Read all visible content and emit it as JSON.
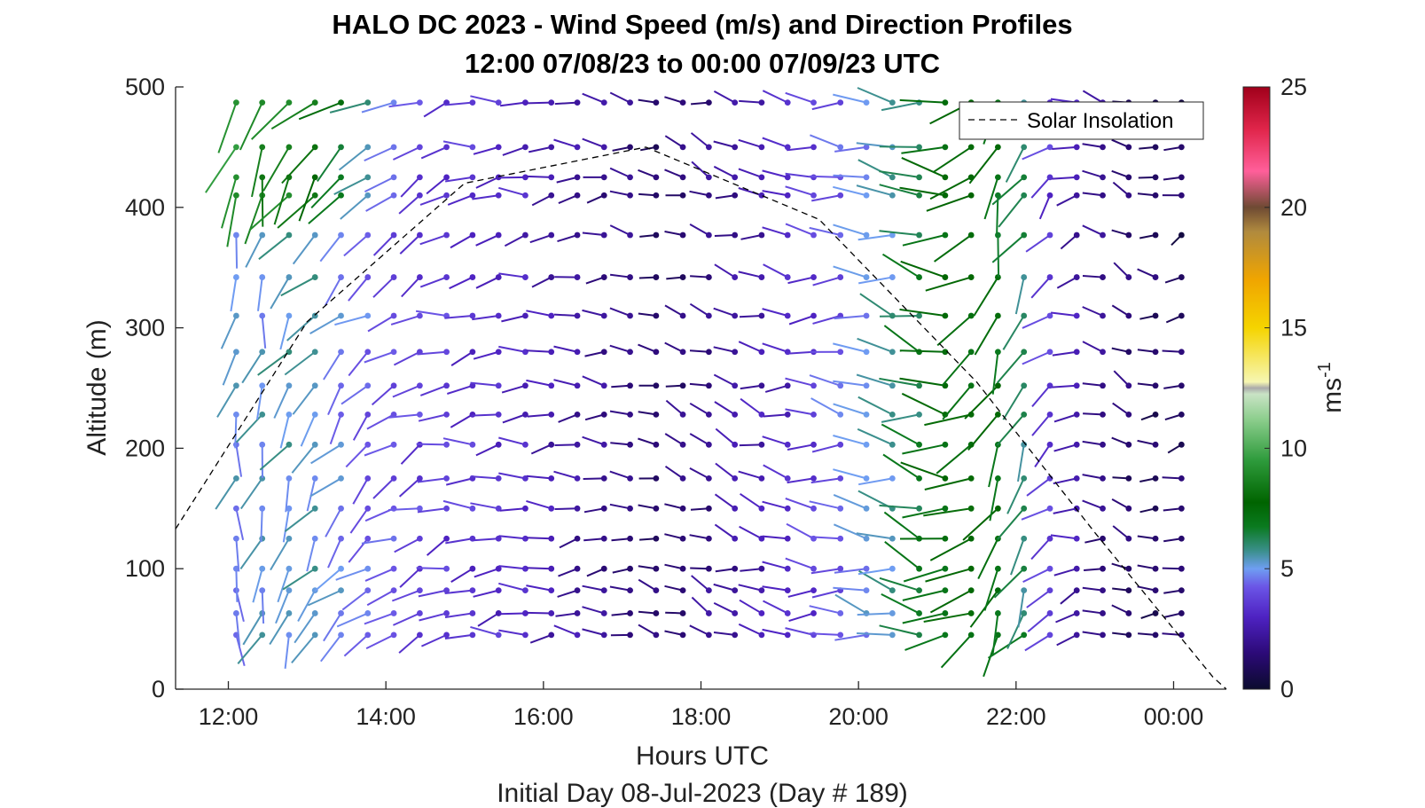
{
  "chart_data": {
    "type": "scatter",
    "title": "HALO DC 2023 - Wind Speed (m/s) and Direction Profiles",
    "subtitle": "12:00 07/08/23 to 00:00 07/09/23  UTC",
    "xlabel": "Hours UTC",
    "ylabel": "Altitude (m)",
    "footer": "Initial Day 08-Jul-2023 (Day # 189)",
    "xlim_hours": [
      11.33,
      24.67
    ],
    "ylim": [
      0,
      500
    ],
    "x_ticks": [
      {
        "h": 12,
        "label": "12:00"
      },
      {
        "h": 14,
        "label": "14:00"
      },
      {
        "h": 16,
        "label": "16:00"
      },
      {
        "h": 18,
        "label": "18:00"
      },
      {
        "h": 20,
        "label": "20:00"
      },
      {
        "h": 22,
        "label": "22:00"
      },
      {
        "h": 24,
        "label": "00:00"
      }
    ],
    "y_ticks": [
      {
        "v": 0,
        "label": "0"
      },
      {
        "v": 100,
        "label": "100"
      },
      {
        "v": 200,
        "label": "200"
      },
      {
        "v": 300,
        "label": "300"
      },
      {
        "v": 400,
        "label": "400"
      },
      {
        "v": 500,
        "label": "500"
      }
    ],
    "colorbar": {
      "label": "ms-1",
      "label_base": "ms",
      "label_sup": "-1",
      "range": [
        0,
        25
      ],
      "ticks": [
        {
          "v": 0,
          "label": "0"
        },
        {
          "v": 5,
          "label": "5"
        },
        {
          "v": 10,
          "label": "10"
        },
        {
          "v": 15,
          "label": "15"
        },
        {
          "v": 20,
          "label": "20"
        },
        {
          "v": 25,
          "label": "25"
        }
      ]
    },
    "legend": {
      "position": "top-right",
      "entries": [
        {
          "name": "Solar Insolation",
          "style": "dashed",
          "color": "#000000"
        }
      ]
    },
    "solar_insolation": {
      "x": [
        11.33,
        13.0,
        15.0,
        17.3,
        19.5,
        21.5,
        23.0,
        24.5,
        24.67
      ],
      "y": [
        133,
        305,
        420,
        450,
        390,
        255,
        130,
        10,
        0
      ]
    },
    "wind_barbs": {
      "times": [
        12.1,
        12.43,
        12.77,
        13.1,
        13.43,
        13.77,
        14.1,
        14.43,
        14.77,
        15.1,
        15.43,
        15.77,
        16.1,
        16.43,
        16.77,
        17.1,
        17.43,
        17.77,
        18.1,
        18.43,
        18.77,
        19.1,
        19.43,
        19.77,
        20.1,
        20.43,
        20.77,
        21.1,
        21.43,
        21.77,
        22.1,
        22.43,
        22.77,
        23.1,
        23.43,
        23.77,
        24.1
      ],
      "altitudes": [
        45,
        63,
        82,
        100,
        125,
        150,
        175,
        203,
        228,
        252,
        280,
        310,
        342,
        377,
        410,
        425,
        450,
        487
      ],
      "speed_profile": [
        {
          "t": 12.1,
          "s": 5.0
        },
        {
          "t": 13.0,
          "s": 5.5
        },
        {
          "t": 14.0,
          "s": 4.0
        },
        {
          "t": 15.5,
          "s": 3.2
        },
        {
          "t": 17.5,
          "s": 1.2
        },
        {
          "t": 19.0,
          "s": 2.8
        },
        {
          "t": 20.5,
          "s": 5.6
        },
        {
          "t": 21.2,
          "s": 7.8
        },
        {
          "t": 22.0,
          "s": 7.0
        },
        {
          "t": 22.5,
          "s": 3.0
        },
        {
          "t": 23.5,
          "s": 1.2
        },
        {
          "t": 24.1,
          "s": 1.0
        }
      ],
      "upper_boost": [
        {
          "t": 12.1,
          "s": 4.0
        },
        {
          "t": 13.0,
          "s": 3.0
        },
        {
          "t": 14.0,
          "s": 0.5
        },
        {
          "t": 14.5,
          "s": 0
        }
      ],
      "direction_profile": [
        {
          "t": 12.1,
          "d": 190
        },
        {
          "t": 13.0,
          "d": 215
        },
        {
          "t": 14.0,
          "d": 235
        },
        {
          "t": 15.0,
          "d": 260
        },
        {
          "t": 17.0,
          "d": 270
        },
        {
          "t": 18.0,
          "d": 290
        },
        {
          "t": 19.5,
          "d": 275
        },
        {
          "t": 21.0,
          "d": 285
        },
        {
          "t": 21.8,
          "d": 200
        },
        {
          "t": 22.5,
          "d": 230
        },
        {
          "t": 23.3,
          "d": 300
        },
        {
          "t": 24.1,
          "d": 250
        }
      ]
    }
  }
}
